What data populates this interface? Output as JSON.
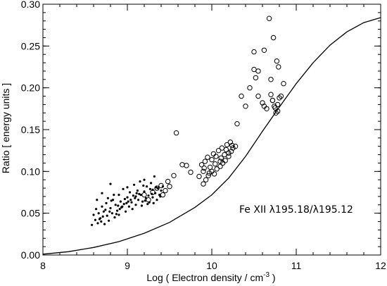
{
  "chart_data": {
    "type": "scatter",
    "xlabel_main": "Log ( Electron density / cm",
    "xlabel_sup": "-3",
    "xlabel_end": " )",
    "ylabel": "Ratio [ energy units ]",
    "xlim": [
      8,
      12
    ],
    "ylim": [
      0,
      0.3
    ],
    "x_ticks": [
      8,
      9,
      10,
      11,
      12
    ],
    "y_ticks": [
      0.0,
      0.05,
      0.1,
      0.15,
      0.2,
      0.25,
      0.3
    ],
    "x_tick_labels": [
      "8",
      "9",
      "10",
      "11",
      "12"
    ],
    "y_tick_labels": [
      "0.00",
      "0.05",
      "0.10",
      "0.15",
      "0.20",
      "0.25",
      "0.30"
    ],
    "annotation": "Fe XII λ195.18/λ195.12",
    "grid": false,
    "curve": {
      "x": [
        8.0,
        8.3,
        8.6,
        8.9,
        9.2,
        9.5,
        9.8,
        10.0,
        10.2,
        10.4,
        10.6,
        10.8,
        11.0,
        11.2,
        11.4,
        11.6,
        11.8,
        12.0
      ],
      "y": [
        0.001,
        0.004,
        0.009,
        0.016,
        0.026,
        0.039,
        0.057,
        0.072,
        0.092,
        0.118,
        0.148,
        0.177,
        0.205,
        0.23,
        0.251,
        0.267,
        0.278,
        0.284
      ]
    },
    "dots": {
      "x": [
        8.58,
        8.6,
        8.62,
        8.63,
        8.65,
        8.66,
        8.68,
        8.7,
        8.7,
        8.72,
        8.73,
        8.75,
        8.76,
        8.78,
        8.8,
        8.8,
        8.82,
        8.83,
        8.85,
        8.86,
        8.88,
        8.9,
        8.9,
        8.92,
        8.93,
        8.95,
        8.96,
        8.98,
        9.0,
        9.0,
        9.02,
        9.03,
        9.05,
        9.06,
        9.08,
        9.1,
        9.1,
        9.12,
        9.13,
        9.15,
        9.16,
        9.18,
        9.2,
        9.2,
        9.22,
        9.23,
        9.25,
        9.26,
        9.28,
        9.3,
        9.3,
        9.32,
        9.33,
        9.35,
        9.36,
        9.38,
        9.4,
        9.42,
        8.64,
        8.74,
        8.84,
        8.94,
        9.04,
        9.14,
        9.24,
        9.34,
        8.67,
        8.77,
        8.87,
        8.97,
        9.07,
        9.17,
        9.27,
        8.69,
        8.79,
        8.89,
        8.99,
        9.09,
        9.19,
        9.29,
        9.39,
        8.71,
        8.81,
        8.91,
        9.01,
        9.11,
        9.21,
        9.31
      ],
      "y": [
        0.036,
        0.048,
        0.042,
        0.055,
        0.038,
        0.05,
        0.044,
        0.074,
        0.058,
        0.052,
        0.037,
        0.062,
        0.047,
        0.041,
        0.085,
        0.056,
        0.05,
        0.066,
        0.045,
        0.06,
        0.053,
        0.072,
        0.048,
        0.064,
        0.057,
        0.079,
        0.061,
        0.052,
        0.081,
        0.069,
        0.058,
        0.075,
        0.063,
        0.055,
        0.084,
        0.07,
        0.06,
        0.077,
        0.066,
        0.088,
        0.072,
        0.064,
        0.09,
        0.076,
        0.068,
        0.082,
        0.071,
        0.063,
        0.086,
        0.078,
        0.069,
        0.094,
        0.074,
        0.066,
        0.08,
        0.072,
        0.077,
        0.082,
        0.066,
        0.054,
        0.072,
        0.058,
        0.066,
        0.073,
        0.061,
        0.081,
        0.043,
        0.068,
        0.049,
        0.067,
        0.071,
        0.059,
        0.079,
        0.04,
        0.052,
        0.059,
        0.062,
        0.068,
        0.083,
        0.073,
        0.07,
        0.046,
        0.065,
        0.055,
        0.064,
        0.074,
        0.065,
        0.062
      ]
    },
    "circles": {
      "x": [
        9.2,
        9.25,
        9.3,
        9.35,
        9.4,
        9.42,
        9.45,
        9.48,
        9.5,
        9.55,
        9.58,
        9.65,
        9.7,
        9.75,
        9.85,
        9.88,
        9.9,
        9.92,
        9.95,
        9.98,
        10.0,
        10.02,
        10.05,
        10.08,
        10.1,
        10.12,
        10.15,
        10.18,
        10.2,
        10.22,
        10.25,
        10.28,
        9.9,
        9.93,
        9.96,
        10.0,
        10.03,
        10.06,
        10.1,
        10.13,
        10.16,
        10.2,
        10.23,
        9.91,
        9.97,
        10.04,
        10.11,
        10.17,
        10.24,
        10.3,
        10.35,
        10.4,
        10.45,
        10.5,
        10.55,
        10.6,
        10.62,
        10.65,
        10.7,
        10.72,
        10.75,
        10.78,
        10.8,
        10.82,
        10.85,
        10.55,
        10.62,
        10.68,
        10.73,
        10.77,
        10.79,
        10.72,
        10.74,
        10.76,
        10.78,
        10.5,
        10.52,
        10.7
      ],
      "y": [
        0.072,
        0.066,
        0.075,
        0.08,
        0.083,
        0.072,
        0.077,
        0.088,
        0.082,
        0.095,
        0.146,
        0.108,
        0.107,
        0.099,
        0.094,
        0.108,
        0.1,
        0.112,
        0.117,
        0.105,
        0.114,
        0.121,
        0.118,
        0.125,
        0.112,
        0.128,
        0.12,
        0.132,
        0.122,
        0.135,
        0.128,
        0.13,
        0.085,
        0.09,
        0.095,
        0.1,
        0.097,
        0.103,
        0.106,
        0.11,
        0.113,
        0.118,
        0.124,
        0.104,
        0.098,
        0.109,
        0.116,
        0.126,
        0.131,
        0.157,
        0.19,
        0.178,
        0.2,
        0.222,
        0.19,
        0.182,
        0.178,
        0.175,
        0.21,
        0.185,
        0.176,
        0.18,
        0.188,
        0.19,
        0.205,
        0.22,
        0.245,
        0.283,
        0.26,
        0.232,
        0.225,
        0.185,
        0.178,
        0.17,
        0.172,
        0.243,
        0.212,
        0.192
      ]
    }
  }
}
